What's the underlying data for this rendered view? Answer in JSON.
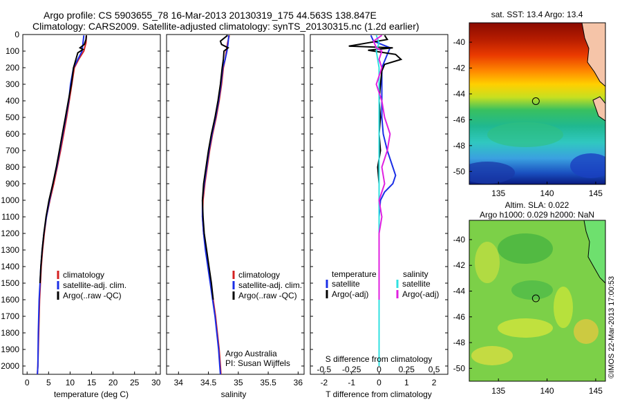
{
  "header": {
    "line1": "Argo profile: CS 5903655_78 16-Mar-2013 20130319_175 44.563S 138.847E",
    "line2": "Climatology: CARS2009. Satellite-adjusted climatology: synTS_20130315.nc (1.2d earlier)"
  },
  "colors": {
    "climatology": "#d42020",
    "satellite": "#1a2ee6",
    "argo": "#000000",
    "sat_salinity": "#30e0e0",
    "argo_salinity": "#e020e0"
  },
  "chart_data": [
    {
      "type": "line",
      "id": "temperature",
      "xlabel": "temperature (deg C)",
      "xlim": [
        -1,
        31
      ],
      "xticks": [
        0,
        5,
        10,
        15,
        20,
        25,
        30
      ],
      "ylim": [
        0,
        2050
      ],
      "yticks": [
        0,
        100,
        200,
        300,
        400,
        500,
        600,
        700,
        800,
        900,
        1000,
        1100,
        1200,
        1300,
        1400,
        1500,
        1600,
        1700,
        1800,
        1900,
        2000
      ],
      "y_reversed": true,
      "legend": [
        "climatology",
        "satellite-adj. clim.",
        "Argo(..raw -QC)"
      ],
      "legend_position": "lower-middle",
      "series": [
        {
          "name": "climatology",
          "color_key": "climatology",
          "points": [
            [
              13.8,
              5
            ],
            [
              13.7,
              50
            ],
            [
              13.2,
              100
            ],
            [
              12.0,
              150
            ],
            [
              11.0,
              200
            ],
            [
              10.4,
              300
            ],
            [
              9.8,
              400
            ],
            [
              9.2,
              500
            ],
            [
              8.5,
              600
            ],
            [
              7.8,
              700
            ],
            [
              7.0,
              800
            ],
            [
              6.2,
              900
            ],
            [
              5.3,
              1000
            ],
            [
              4.5,
              1100
            ],
            [
              4.0,
              1200
            ],
            [
              3.6,
              1300
            ],
            [
              3.3,
              1400
            ],
            [
              3.1,
              1500
            ],
            [
              2.9,
              1600
            ],
            [
              2.7,
              1800
            ],
            [
              2.5,
              2000
            ],
            [
              2.4,
              2050
            ]
          ]
        },
        {
          "name": "satellite-adj. clim.",
          "color_key": "satellite",
          "points": [
            [
              13.2,
              5
            ],
            [
              13.0,
              50
            ],
            [
              12.8,
              100
            ],
            [
              11.8,
              150
            ],
            [
              10.8,
              200
            ],
            [
              10.1,
              300
            ],
            [
              9.7,
              400
            ],
            [
              9.0,
              500
            ],
            [
              8.3,
              600
            ],
            [
              7.6,
              700
            ],
            [
              6.9,
              800
            ],
            [
              6.0,
              900
            ],
            [
              5.2,
              1000
            ],
            [
              4.5,
              1100
            ],
            [
              3.9,
              1200
            ],
            [
              3.5,
              1300
            ],
            [
              3.2,
              1400
            ],
            [
              3.0,
              1500
            ],
            [
              2.8,
              1600
            ],
            [
              2.6,
              1800
            ],
            [
              2.5,
              2000
            ],
            [
              2.4,
              2050
            ]
          ]
        },
        {
          "name": "Argo(..raw -QC)",
          "color_key": "argo",
          "points": [
            [
              13.8,
              5
            ],
            [
              13.7,
              30
            ],
            [
              13.3,
              60
            ],
            [
              12.3,
              80
            ],
            [
              13.0,
              90
            ],
            [
              11.8,
              110
            ],
            [
              10.8,
              200
            ],
            [
              10.3,
              300
            ],
            [
              9.6,
              400
            ],
            [
              8.9,
              500
            ],
            [
              8.2,
              600
            ],
            [
              7.5,
              700
            ],
            [
              6.8,
              800
            ],
            [
              6.0,
              900
            ],
            [
              5.1,
              1000
            ],
            [
              4.4,
              1100
            ],
            [
              3.9,
              1200
            ],
            [
              3.5,
              1300
            ],
            [
              3.2,
              1400
            ],
            [
              3.0,
              1500
            ]
          ]
        }
      ]
    },
    {
      "type": "line",
      "id": "salinity",
      "xlabel": "salinity",
      "xlim": [
        33.8,
        36.1
      ],
      "xticks": [
        34,
        34.5,
        35,
        35.5,
        36
      ],
      "ylim": [
        0,
        2050
      ],
      "y_reversed": true,
      "legend": [
        "climatology",
        "satellite-adj. clim.",
        "Argo(..raw -QC)"
      ],
      "legend_position": "lower-middle",
      "annotation": [
        "Argo Australia",
        "PI: Susan Wijffels"
      ],
      "series": [
        {
          "name": "climatology",
          "color_key": "climatology",
          "points": [
            [
              34.85,
              5
            ],
            [
              34.82,
              50
            ],
            [
              34.8,
              100
            ],
            [
              34.78,
              150
            ],
            [
              34.75,
              200
            ],
            [
              34.72,
              300
            ],
            [
              34.68,
              400
            ],
            [
              34.63,
              500
            ],
            [
              34.57,
              600
            ],
            [
              34.52,
              700
            ],
            [
              34.48,
              800
            ],
            [
              34.44,
              900
            ],
            [
              34.41,
              1000
            ],
            [
              34.4,
              1100
            ],
            [
              34.42,
              1200
            ],
            [
              34.46,
              1300
            ],
            [
              34.5,
              1400
            ],
            [
              34.54,
              1500
            ],
            [
              34.58,
              1600
            ],
            [
              34.62,
              1700
            ],
            [
              34.65,
              1800
            ],
            [
              34.68,
              1900
            ],
            [
              34.7,
              2000
            ],
            [
              34.71,
              2050
            ]
          ]
        },
        {
          "name": "satellite-adj. clim.",
          "color_key": "satellite",
          "points": [
            [
              34.84,
              5
            ],
            [
              34.83,
              50
            ],
            [
              34.81,
              100
            ],
            [
              34.78,
              150
            ],
            [
              34.74,
              200
            ],
            [
              34.71,
              300
            ],
            [
              34.67,
              400
            ],
            [
              34.62,
              500
            ],
            [
              34.56,
              600
            ],
            [
              34.51,
              700
            ],
            [
              34.47,
              800
            ],
            [
              34.43,
              900
            ],
            [
              34.4,
              1000
            ],
            [
              34.4,
              1100
            ],
            [
              34.42,
              1200
            ],
            [
              34.45,
              1300
            ],
            [
              34.49,
              1400
            ],
            [
              34.53,
              1500
            ],
            [
              34.57,
              1600
            ],
            [
              34.61,
              1700
            ],
            [
              34.64,
              1800
            ],
            [
              34.67,
              1900
            ],
            [
              34.69,
              2000
            ],
            [
              34.7,
              2050
            ]
          ]
        },
        {
          "name": "Argo(..raw -QC)",
          "color_key": "argo",
          "points": [
            [
              34.82,
              5
            ],
            [
              34.7,
              40
            ],
            [
              34.72,
              60
            ],
            [
              34.83,
              80
            ],
            [
              34.76,
              100
            ],
            [
              34.75,
              150
            ],
            [
              34.73,
              200
            ],
            [
              34.7,
              300
            ],
            [
              34.66,
              400
            ],
            [
              34.61,
              500
            ],
            [
              34.55,
              600
            ],
            [
              34.5,
              700
            ],
            [
              34.46,
              800
            ],
            [
              34.42,
              900
            ],
            [
              34.4,
              1000
            ],
            [
              34.41,
              1100
            ],
            [
              34.43,
              1200
            ],
            [
              34.47,
              1300
            ],
            [
              34.51,
              1400
            ],
            [
              34.55,
              1500
            ],
            [
              34.58,
              1600
            ]
          ]
        }
      ]
    },
    {
      "type": "line",
      "id": "difference",
      "xlabel": "T difference from climatology",
      "xlabel_top": "S difference from climatology",
      "xlim": [
        -2.5,
        2.5
      ],
      "xticks": [
        -2,
        -1,
        0,
        1,
        2
      ],
      "xticks_top_labels": [
        "-0.5",
        "-0.25",
        "0",
        "0.25",
        "0.5"
      ],
      "xticks_top_positions": [
        -2,
        -1,
        0,
        1,
        2
      ],
      "ylim": [
        0,
        2050
      ],
      "y_reversed": true,
      "legend_left_title": "temperature",
      "legend_right_title": "salinity",
      "legend_left": [
        "satellite",
        "Argo(-adj)"
      ],
      "legend_right": [
        "satellite",
        "Argo(-adj)"
      ],
      "series": [
        {
          "name": "satellite",
          "group": "temperature",
          "color_key": "satellite",
          "points": [
            [
              -0.3,
              5
            ],
            [
              -0.2,
              40
            ],
            [
              0.4,
              80
            ],
            [
              0.3,
              120
            ],
            [
              0.1,
              200
            ],
            [
              0.1,
              300
            ],
            [
              0.1,
              400
            ],
            [
              0.1,
              500
            ],
            [
              0.15,
              600
            ],
            [
              0.3,
              700
            ],
            [
              0.5,
              800
            ],
            [
              0.6,
              850
            ],
            [
              0.5,
              900
            ],
            [
              0.2,
              950
            ],
            [
              0.05,
              1000
            ],
            [
              0.0,
              1100
            ],
            [
              0.0,
              1200
            ],
            [
              0.0,
              1400
            ],
            [
              0.0,
              1600
            ],
            [
              0.0,
              1800
            ],
            [
              0.0,
              2000
            ]
          ]
        },
        {
          "name": "Argo(-adj)",
          "group": "temperature",
          "color_key": "argo",
          "points": [
            [
              0.2,
              5
            ],
            [
              0.3,
              30
            ],
            [
              -1.1,
              70
            ],
            [
              0.5,
              80
            ],
            [
              -0.4,
              95
            ],
            [
              0.6,
              120
            ],
            [
              0.8,
              150
            ],
            [
              0.2,
              180
            ],
            [
              0.1,
              220
            ],
            [
              0.05,
              300
            ],
            [
              0.0,
              400
            ],
            [
              0.05,
              500
            ],
            [
              0.0,
              600
            ],
            [
              0.05,
              700
            ],
            [
              -0.05,
              800
            ],
            [
              0.0,
              900
            ],
            [
              0.0,
              1000
            ],
            [
              0.0,
              1100
            ],
            [
              0.0,
              1200
            ],
            [
              0.0,
              1300
            ],
            [
              0.0,
              1400
            ]
          ]
        },
        {
          "name": "satellite",
          "group": "salinity",
          "color_key": "sat_salinity",
          "points": [
            [
              -0.1,
              5
            ],
            [
              0.0,
              50
            ],
            [
              -0.1,
              100
            ],
            [
              -0.05,
              150
            ],
            [
              0.0,
              200
            ],
            [
              0.0,
              300
            ],
            [
              0.0,
              400
            ],
            [
              0.0,
              500
            ],
            [
              0.0,
              600
            ],
            [
              0.0,
              700
            ],
            [
              0.0,
              800
            ],
            [
              0.0,
              900
            ],
            [
              0.0,
              1000
            ],
            [
              0.0,
              1200
            ],
            [
              0.0,
              1400
            ],
            [
              0.0,
              1600
            ],
            [
              0.0,
              1800
            ],
            [
              0.0,
              2000
            ]
          ]
        },
        {
          "name": "Argo(-adj)",
          "group": "salinity",
          "color_key": "argo_salinity",
          "points": [
            [
              0.1,
              5
            ],
            [
              -0.2,
              40
            ],
            [
              -0.1,
              80
            ],
            [
              0.1,
              100
            ],
            [
              0.0,
              150
            ],
            [
              0.1,
              200
            ],
            [
              -0.1,
              300
            ],
            [
              0.1,
              400
            ],
            [
              0.2,
              500
            ],
            [
              0.4,
              600
            ],
            [
              0.3,
              700
            ],
            [
              0.1,
              800
            ],
            [
              0.2,
              900
            ],
            [
              0.0,
              1000
            ],
            [
              0.1,
              1100
            ],
            [
              0.0,
              1200
            ],
            [
              0.0,
              1300
            ],
            [
              0.0,
              1400
            ],
            [
              0.0,
              1500
            ],
            [
              0.0,
              1600
            ]
          ]
        }
      ]
    },
    {
      "type": "heatmap",
      "id": "sst_map",
      "title": "sat. SST: 13.4  Argo: 13.4",
      "xlim": [
        132,
        146
      ],
      "ylim": [
        -51,
        -38.5
      ],
      "xticks": [
        135,
        140,
        145
      ],
      "yticks": [
        -40,
        -42,
        -44,
        -46,
        -48,
        -50
      ],
      "marker": [
        138.847,
        -44.563
      ],
      "colormap": "jet"
    },
    {
      "type": "heatmap",
      "id": "sla_map",
      "title": [
        "Altim. SLA: 0.022",
        "Argo h1000: 0.029 h2000: NaN"
      ],
      "xlim": [
        132,
        146
      ],
      "ylim": [
        -51,
        -38.5
      ],
      "xticks": [
        135,
        140,
        145
      ],
      "yticks": [
        -40,
        -42,
        -44,
        -46,
        -48,
        -50
      ],
      "marker": [
        138.847,
        -44.563
      ],
      "colormap": "green-yellow"
    }
  ],
  "stamp": "©IMOS 22-Mar-2013 17:00:53"
}
